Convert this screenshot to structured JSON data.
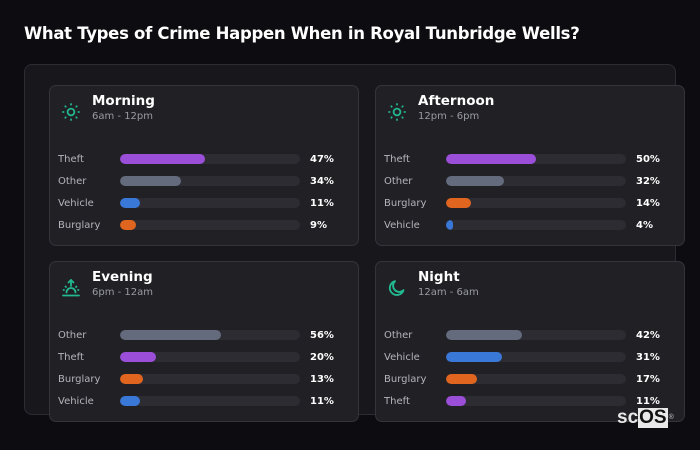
{
  "title": "What Types of Crime Happen When in Royal Tunbridge Wells?",
  "logo": {
    "prefix": "sc",
    "box": "OS",
    "mark": "®"
  },
  "colors": {
    "Theft": "#9b4fd9",
    "Other": "#646b7c",
    "Vehicle": "#3a78d8",
    "Burglary": "#e0661f",
    "icon": "#22b890"
  },
  "cards": [
    {
      "title": "Morning",
      "subtitle": "6am - 12pm",
      "icon": "sun-icon",
      "rows": [
        {
          "label": "Theft",
          "value": 47,
          "display": "47%"
        },
        {
          "label": "Other",
          "value": 34,
          "display": "34%"
        },
        {
          "label": "Vehicle",
          "value": 11,
          "display": "11%"
        },
        {
          "label": "Burglary",
          "value": 9,
          "display": "9%"
        }
      ]
    },
    {
      "title": "Afternoon",
      "subtitle": "12pm - 6pm",
      "icon": "sun-icon",
      "rows": [
        {
          "label": "Theft",
          "value": 50,
          "display": "50%"
        },
        {
          "label": "Other",
          "value": 32,
          "display": "32%"
        },
        {
          "label": "Burglary",
          "value": 14,
          "display": "14%"
        },
        {
          "label": "Vehicle",
          "value": 4,
          "display": "4%"
        }
      ]
    },
    {
      "title": "Evening",
      "subtitle": "6pm - 12am",
      "icon": "sunset-icon",
      "rows": [
        {
          "label": "Other",
          "value": 56,
          "display": "56%"
        },
        {
          "label": "Theft",
          "value": 20,
          "display": "20%"
        },
        {
          "label": "Burglary",
          "value": 13,
          "display": "13%"
        },
        {
          "label": "Vehicle",
          "value": 11,
          "display": "11%"
        }
      ]
    },
    {
      "title": "Night",
      "subtitle": "12am - 6am",
      "icon": "moon-icon",
      "rows": [
        {
          "label": "Other",
          "value": 42,
          "display": "42%"
        },
        {
          "label": "Vehicle",
          "value": 31,
          "display": "31%"
        },
        {
          "label": "Burglary",
          "value": 17,
          "display": "17%"
        },
        {
          "label": "Theft",
          "value": 11,
          "display": "11%"
        }
      ]
    }
  ],
  "chart_data": [
    {
      "type": "bar",
      "orientation": "horizontal",
      "title": "Morning",
      "subtitle": "6am - 12pm",
      "categories": [
        "Theft",
        "Other",
        "Vehicle",
        "Burglary"
      ],
      "values": [
        47,
        34,
        11,
        9
      ],
      "unit": "%",
      "xlim": [
        0,
        100
      ]
    },
    {
      "type": "bar",
      "orientation": "horizontal",
      "title": "Afternoon",
      "subtitle": "12pm - 6pm",
      "categories": [
        "Theft",
        "Other",
        "Burglary",
        "Vehicle"
      ],
      "values": [
        50,
        32,
        14,
        4
      ],
      "unit": "%",
      "xlim": [
        0,
        100
      ]
    },
    {
      "type": "bar",
      "orientation": "horizontal",
      "title": "Evening",
      "subtitle": "6pm - 12am",
      "categories": [
        "Other",
        "Theft",
        "Burglary",
        "Vehicle"
      ],
      "values": [
        56,
        20,
        13,
        11
      ],
      "unit": "%",
      "xlim": [
        0,
        100
      ]
    },
    {
      "type": "bar",
      "orientation": "horizontal",
      "title": "Night",
      "subtitle": "12am - 6am",
      "categories": [
        "Other",
        "Vehicle",
        "Burglary",
        "Theft"
      ],
      "values": [
        42,
        31,
        17,
        11
      ],
      "unit": "%",
      "xlim": [
        0,
        100
      ]
    }
  ]
}
